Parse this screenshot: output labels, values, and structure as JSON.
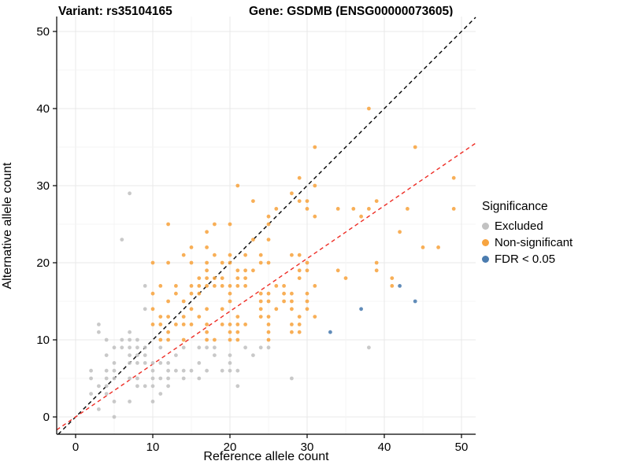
{
  "titles": {
    "variant": "Variant: rs35104165",
    "gene": "Gene: GSDMB (ENSG00000073605)"
  },
  "legend": {
    "title": "Significance",
    "items": [
      {
        "label": "Excluded",
        "color": "#C2C2C2"
      },
      {
        "label": "Non-significant",
        "color": "#F7A440"
      },
      {
        "label": "FDR < 0.05",
        "color": "#4B7CAF"
      }
    ]
  },
  "chart_data": {
    "type": "scatter",
    "title": "Variant: rs35104165 — Gene: GSDMB (ENSG00000073605)",
    "xlabel": "Reference allele count",
    "ylabel": "Alternative allele count",
    "xlim": [
      -2.45,
      51.84
    ],
    "ylim": [
      -2.25,
      51.94
    ],
    "xticks": [
      0,
      10,
      20,
      30,
      40,
      50
    ],
    "yticks": [
      0,
      10,
      20,
      30,
      40,
      50
    ],
    "grid": {
      "major_step": 10,
      "minor_step": 5,
      "major_color": "#E9E9E9",
      "minor_color": "#F4F4F4"
    },
    "lines": [
      {
        "name": "identity-line",
        "slope": 1,
        "intercept": 0,
        "color": "#000000",
        "style": "dashed"
      },
      {
        "name": "expected-ratio-line",
        "slope": 0.685,
        "intercept": 0,
        "color": "#EE2C24",
        "style": "dashed"
      }
    ],
    "series": [
      {
        "name": "Excluded",
        "color": "#C2C2C2",
        "points": [
          [
            3,
            12
          ],
          [
            3,
            11
          ],
          [
            4,
            10
          ],
          [
            6,
            10
          ],
          [
            5,
            9
          ],
          [
            6,
            9
          ],
          [
            4,
            8
          ],
          [
            5,
            7
          ],
          [
            2,
            6
          ],
          [
            4,
            6
          ],
          [
            5,
            6
          ],
          [
            2,
            5
          ],
          [
            4,
            5
          ],
          [
            5,
            5
          ],
          [
            3,
            4
          ],
          [
            4,
            4
          ],
          [
            2,
            3
          ],
          [
            4,
            3
          ],
          [
            5,
            2
          ],
          [
            3,
            1
          ],
          [
            5,
            0
          ],
          [
            10,
            6
          ],
          [
            12,
            6
          ],
          [
            13,
            6
          ],
          [
            14,
            6
          ],
          [
            15,
            6
          ],
          [
            7,
            5
          ],
          [
            8,
            5
          ],
          [
            10,
            5
          ],
          [
            11,
            5
          ],
          [
            12,
            5
          ],
          [
            14,
            5
          ],
          [
            8,
            4
          ],
          [
            9,
            4
          ],
          [
            10,
            4
          ],
          [
            12,
            4
          ],
          [
            11,
            3
          ],
          [
            7,
            2
          ],
          [
            10,
            2
          ],
          [
            9,
            14
          ],
          [
            7,
            11
          ],
          [
            7,
            10
          ],
          [
            8,
            10
          ],
          [
            7,
            9
          ],
          [
            8,
            9
          ],
          [
            9,
            9
          ],
          [
            11,
            9
          ],
          [
            14,
            9
          ],
          [
            7,
            8
          ],
          [
            8,
            8
          ],
          [
            9,
            8
          ],
          [
            13,
            8
          ],
          [
            7,
            7
          ],
          [
            8,
            7
          ],
          [
            9,
            7
          ],
          [
            10,
            7
          ],
          [
            11,
            7
          ],
          [
            12,
            7
          ],
          [
            9,
            17
          ],
          [
            6,
            23
          ],
          [
            7,
            29
          ],
          [
            16,
            9
          ],
          [
            17,
            9
          ],
          [
            18,
            9
          ],
          [
            22,
            9
          ],
          [
            24,
            9
          ],
          [
            25,
            9
          ],
          [
            18,
            8
          ],
          [
            20,
            8
          ],
          [
            23,
            8
          ],
          [
            16,
            7
          ],
          [
            20,
            7
          ],
          [
            17,
            6
          ],
          [
            19,
            6
          ],
          [
            20,
            6
          ],
          [
            21,
            6
          ],
          [
            16,
            5
          ],
          [
            28,
            5
          ],
          [
            21,
            4
          ],
          [
            38,
            9
          ]
        ]
      },
      {
        "name": "Non-significant",
        "color": "#F7A440",
        "points": [
          [
            11,
            10
          ],
          [
            12,
            10
          ],
          [
            14,
            10
          ],
          [
            17,
            10
          ],
          [
            18,
            10
          ],
          [
            20,
            10
          ],
          [
            21,
            10
          ],
          [
            25,
            10
          ],
          [
            12,
            11
          ],
          [
            17,
            11
          ],
          [
            20,
            11
          ],
          [
            21,
            11
          ],
          [
            25,
            11
          ],
          [
            28,
            11
          ],
          [
            29,
            11
          ],
          [
            10,
            12
          ],
          [
            11,
            12
          ],
          [
            13,
            12
          ],
          [
            14,
            12
          ],
          [
            15,
            12
          ],
          [
            17,
            12
          ],
          [
            19,
            12
          ],
          [
            20,
            12
          ],
          [
            21,
            12
          ],
          [
            22,
            12
          ],
          [
            25,
            12
          ],
          [
            28,
            12
          ],
          [
            29,
            12
          ],
          [
            11,
            13
          ],
          [
            12,
            13
          ],
          [
            14,
            13
          ],
          [
            16,
            13
          ],
          [
            21,
            13
          ],
          [
            24,
            13
          ],
          [
            25,
            13
          ],
          [
            29,
            13
          ],
          [
            31,
            13
          ],
          [
            10,
            14
          ],
          [
            15,
            14
          ],
          [
            17,
            14
          ],
          [
            19,
            14
          ],
          [
            24,
            14
          ],
          [
            26,
            14
          ],
          [
            28,
            14
          ],
          [
            30,
            14
          ],
          [
            12,
            15
          ],
          [
            14,
            15
          ],
          [
            20,
            15
          ],
          [
            24,
            15
          ],
          [
            25,
            15
          ],
          [
            27,
            15
          ],
          [
            28,
            15
          ],
          [
            30,
            15
          ],
          [
            10,
            16
          ],
          [
            13,
            16
          ],
          [
            15,
            16
          ],
          [
            16,
            16
          ],
          [
            20,
            16
          ],
          [
            24,
            16
          ],
          [
            25,
            16
          ],
          [
            27,
            16
          ],
          [
            28,
            16
          ],
          [
            30,
            16
          ],
          [
            11,
            17
          ],
          [
            13,
            17
          ],
          [
            15,
            17
          ],
          [
            16,
            17
          ],
          [
            17,
            17
          ],
          [
            18,
            17
          ],
          [
            19,
            17
          ],
          [
            20,
            17
          ],
          [
            21,
            17
          ],
          [
            22,
            17
          ],
          [
            26,
            17
          ],
          [
            27,
            17
          ],
          [
            31,
            17
          ],
          [
            41,
            17
          ],
          [
            16,
            18
          ],
          [
            17,
            18
          ],
          [
            18,
            18
          ],
          [
            19,
            18
          ],
          [
            21,
            18
          ],
          [
            22,
            18
          ],
          [
            29,
            18
          ],
          [
            35,
            18
          ],
          [
            41,
            18
          ],
          [
            17,
            19
          ],
          [
            21,
            19
          ],
          [
            22,
            19
          ],
          [
            23,
            19
          ],
          [
            29,
            19
          ],
          [
            30,
            19
          ],
          [
            34,
            19
          ],
          [
            39,
            19
          ],
          [
            10,
            20
          ],
          [
            12,
            20
          ],
          [
            15,
            20
          ],
          [
            17,
            20
          ],
          [
            19,
            20
          ],
          [
            20,
            20
          ],
          [
            24,
            20
          ],
          [
            25,
            20
          ],
          [
            30,
            20
          ],
          [
            39,
            20
          ],
          [
            14,
            21
          ],
          [
            18,
            21
          ],
          [
            20,
            21
          ],
          [
            22,
            21
          ],
          [
            24,
            21
          ],
          [
            28,
            21
          ],
          [
            29,
            21
          ],
          [
            15,
            22
          ],
          [
            17,
            22
          ],
          [
            45,
            22
          ],
          [
            47,
            22
          ],
          [
            23,
            23
          ],
          [
            25,
            23
          ],
          [
            17,
            24
          ],
          [
            42,
            24
          ],
          [
            12,
            25
          ],
          [
            18,
            25
          ],
          [
            20,
            25
          ],
          [
            25,
            25
          ],
          [
            25,
            26
          ],
          [
            31,
            26
          ],
          [
            37,
            26
          ],
          [
            26,
            27
          ],
          [
            30,
            27
          ],
          [
            34,
            27
          ],
          [
            36,
            27
          ],
          [
            38,
            27
          ],
          [
            43,
            27
          ],
          [
            49,
            27
          ],
          [
            23,
            28
          ],
          [
            29,
            28
          ],
          [
            30,
            28
          ],
          [
            39,
            28
          ],
          [
            28,
            29
          ],
          [
            21,
            30
          ],
          [
            31,
            30
          ],
          [
            29,
            31
          ],
          [
            49,
            31
          ],
          [
            31,
            35
          ],
          [
            44,
            35
          ],
          [
            38,
            40
          ]
        ]
      },
      {
        "name": "FDR < 0.05",
        "color": "#4B7CAF",
        "points": [
          [
            33,
            11
          ],
          [
            37,
            14
          ],
          [
            44,
            15
          ],
          [
            42,
            17
          ]
        ]
      }
    ]
  },
  "axes": {
    "x_label": "Reference allele count",
    "y_label": "Alternative allele count",
    "x_tick_labels": [
      "0",
      "10",
      "20",
      "30",
      "40",
      "50"
    ],
    "y_tick_labels": [
      "0",
      "10",
      "20",
      "30",
      "40",
      "50"
    ]
  }
}
